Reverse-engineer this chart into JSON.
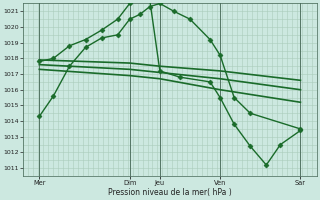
{
  "xlabel": "Pression niveau de la mer( hPa )",
  "bg_color": "#cce8e0",
  "grid_color": "#aaccbb",
  "line_color": "#1a6b2a",
  "ylim": [
    1010.5,
    1021.5
  ],
  "yticks": [
    1011,
    1012,
    1013,
    1014,
    1015,
    1016,
    1017,
    1018,
    1019,
    1020,
    1021
  ],
  "xlim": [
    -0.3,
    14.3
  ],
  "day_labels": [
    "Mer",
    "Dim",
    "Jeu",
    "Ven",
    "Sar"
  ],
  "day_positions": [
    0.5,
    5.0,
    6.5,
    9.5,
    13.5
  ],
  "vline_positions": [
    0.5,
    5.0,
    6.5,
    9.5,
    13.5
  ],
  "lines": [
    {
      "x": [
        0.5,
        1.2,
        2.0,
        2.8,
        3.6,
        4.4,
        5.0,
        5.5,
        6.0,
        6.5,
        7.2,
        8.0,
        9.0,
        9.5,
        10.2,
        11.0,
        13.5
      ],
      "y": [
        1014.3,
        1015.6,
        1017.5,
        1018.7,
        1019.3,
        1019.5,
        1020.5,
        1020.8,
        1021.3,
        1021.5,
        1021.0,
        1020.5,
        1019.2,
        1018.2,
        1015.5,
        1014.5,
        1013.5
      ],
      "marker": "D",
      "markersize": 2.5,
      "linewidth": 1.0
    },
    {
      "x": [
        0.5,
        1.2,
        2.0,
        2.8,
        3.6,
        4.4,
        5.0,
        5.5,
        6.0,
        6.5,
        7.5,
        9.0,
        9.5,
        10.2,
        11.0,
        11.8,
        12.5,
        13.5
      ],
      "y": [
        1017.8,
        1018.0,
        1018.8,
        1019.2,
        1019.8,
        1020.5,
        1021.5,
        1021.8,
        1021.7,
        1017.2,
        1016.8,
        1016.5,
        1015.5,
        1013.8,
        1012.4,
        1011.2,
        1012.5,
        1013.4
      ],
      "marker": "D",
      "markersize": 2.5,
      "linewidth": 1.0
    },
    {
      "x": [
        0.5,
        5.0,
        6.5,
        9.5,
        13.5
      ],
      "y": [
        1017.9,
        1017.7,
        1017.5,
        1017.2,
        1016.6
      ],
      "marker": null,
      "markersize": 0,
      "linewidth": 1.2
    },
    {
      "x": [
        0.5,
        5.0,
        6.5,
        9.5,
        13.5
      ],
      "y": [
        1017.6,
        1017.3,
        1017.1,
        1016.7,
        1016.0
      ],
      "marker": null,
      "markersize": 0,
      "linewidth": 1.2
    },
    {
      "x": [
        0.5,
        5.0,
        6.5,
        9.5,
        13.5
      ],
      "y": [
        1017.3,
        1016.9,
        1016.7,
        1016.0,
        1015.2
      ],
      "marker": null,
      "markersize": 0,
      "linewidth": 1.2
    }
  ]
}
